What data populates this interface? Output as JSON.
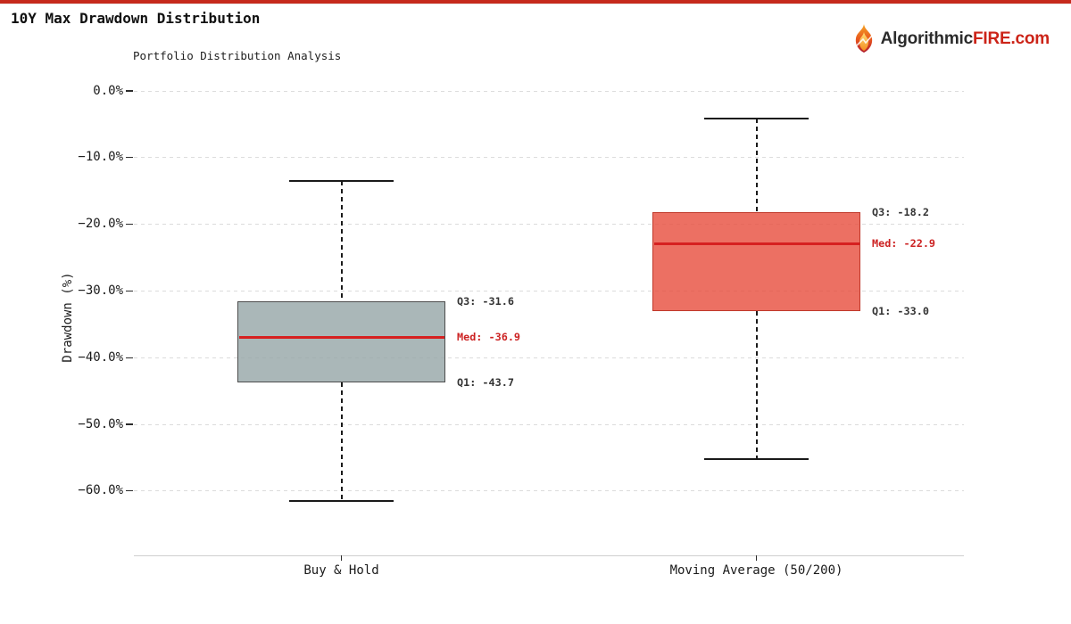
{
  "page": {
    "title": "10Y Max Drawdown Distribution",
    "top_bar_color": "#c62a1c",
    "brand": {
      "icon": "flame-icon",
      "name_left": "Algorithmic",
      "name_right": "FIRE.com",
      "name_left_color": "#2b2b2b",
      "name_right_color": "#cc2418"
    }
  },
  "chart_data": {
    "type": "boxplot",
    "title": "Portfolio Distribution Analysis",
    "ylabel": "Drawdown (%)",
    "ylim": [
      -70,
      1.5
    ],
    "grid": "horizontal dashed",
    "y_ticks": [
      {
        "value": 0,
        "label": "0.0%"
      },
      {
        "value": -10,
        "label": "−10.0%"
      },
      {
        "value": -20,
        "label": "−20.0%"
      },
      {
        "value": -30,
        "label": "−30.0%"
      },
      {
        "value": -40,
        "label": "−40.0%"
      },
      {
        "value": -50,
        "label": "−50.0%"
      },
      {
        "value": -60,
        "label": "−60.0%"
      }
    ],
    "categories": [
      "Buy & Hold",
      "Moving Average (50/200)"
    ],
    "series": [
      {
        "name": "Buy & Hold",
        "whisker_high": -13.5,
        "q3": -31.6,
        "median": -36.9,
        "q1": -43.7,
        "whisker_low": -61.5,
        "fill": "rgba(149,165,166,0.8)",
        "border": "#4d4d4d",
        "labels": {
          "q3": "Q3: -31.6",
          "med": "Med: -36.9",
          "q1": "Q1: -43.7"
        }
      },
      {
        "name": "Moving Average (50/200)",
        "whisker_high": -4.1,
        "q3": -18.2,
        "median": -22.9,
        "q1": -33.0,
        "whisker_low": -55.2,
        "fill": "rgba(231,76,60,0.8)",
        "border": "#c0392b",
        "labels": {
          "q3": "Q3: -18.2",
          "med": "Med: -22.9",
          "q1": "Q1: -33.0"
        }
      }
    ],
    "median_color": "#d62020",
    "annotation_color": "#333333",
    "annotation_med_color": "#cc2222"
  }
}
